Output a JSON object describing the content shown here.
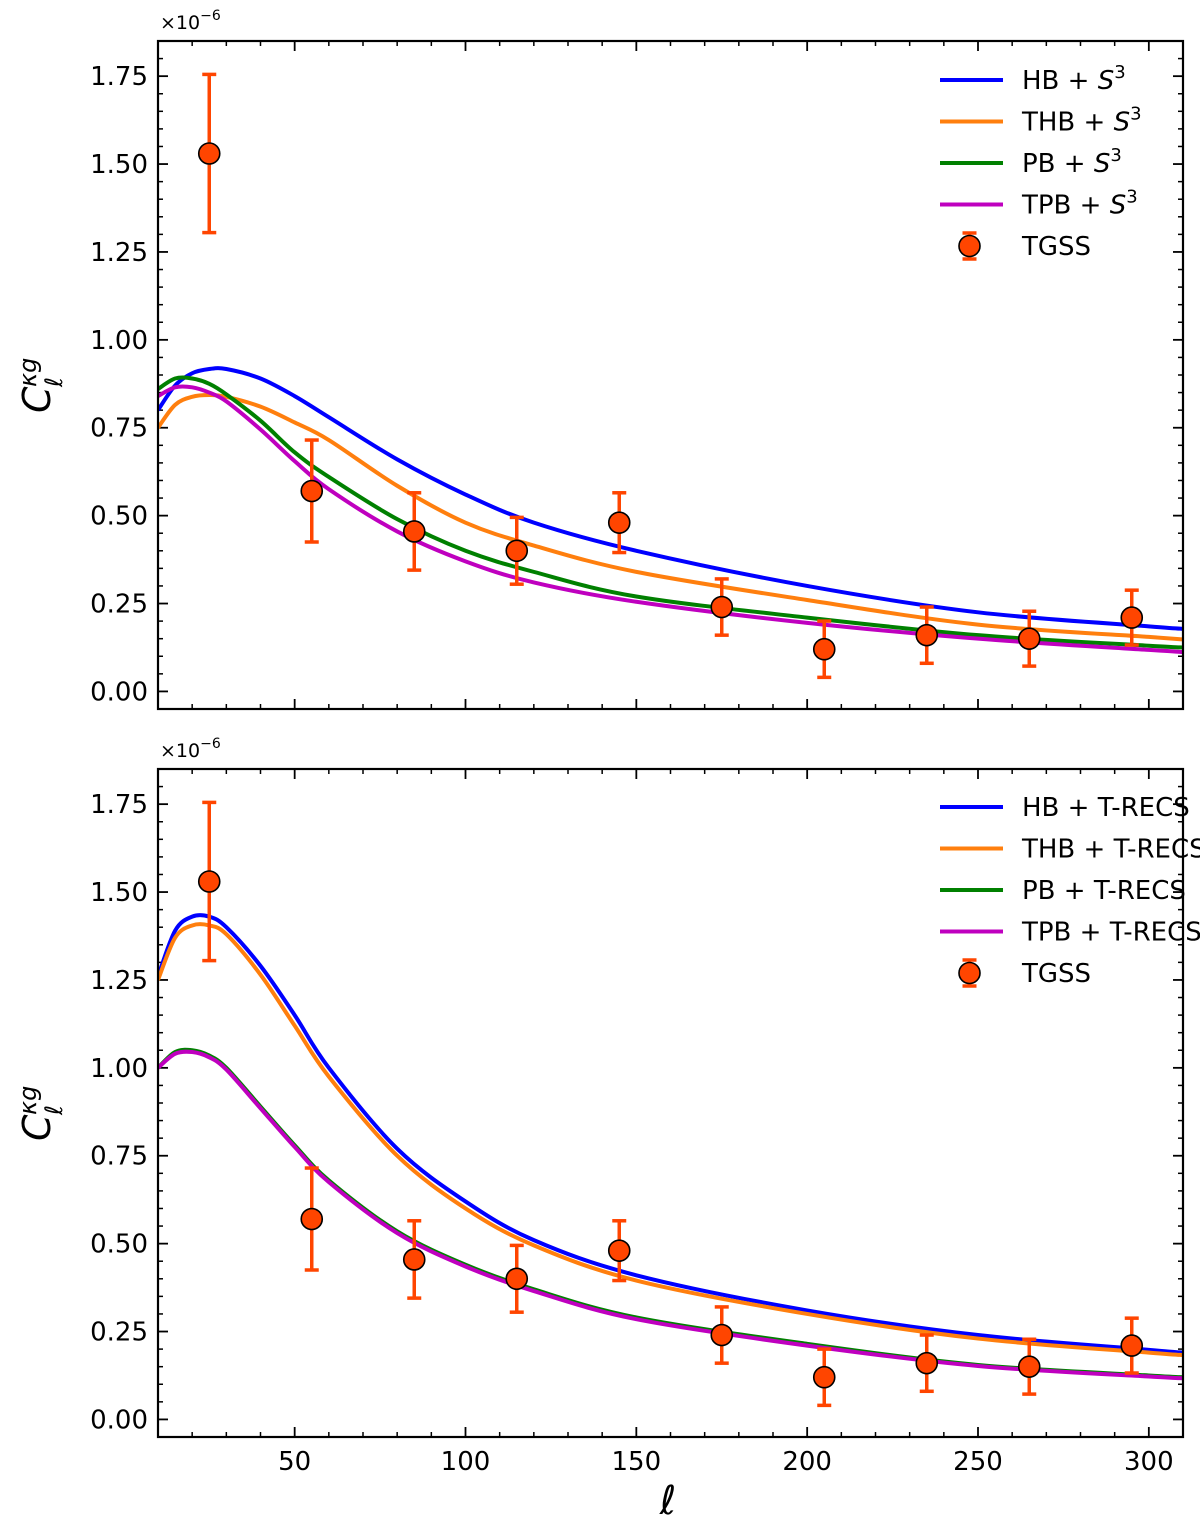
{
  "figure": {
    "xlabel": "ℓ",
    "x_tick_labels": [
      "50",
      "100",
      "150",
      "200",
      "250",
      "300"
    ],
    "x_ticks": [
      50,
      100,
      150,
      200,
      250,
      300
    ],
    "y_tick_labels": [
      "0.00",
      "0.25",
      "0.50",
      "0.75",
      "1.00",
      "1.25",
      "1.50",
      "1.75"
    ],
    "y_ticks": [
      0,
      0.25,
      0.5,
      0.75,
      1.0,
      1.25,
      1.5,
      1.75
    ],
    "ylabel_main": "C",
    "ylabel_sup": "κg",
    "ylabel_sub": "ℓ",
    "offset_text": "×10",
    "offset_exp": "−6"
  },
  "chart_data": [
    {
      "type": "line",
      "panel": "top",
      "title": "",
      "xlabel": "",
      "ylabel": "C_ℓ^κg",
      "xlim": [
        10,
        310
      ],
      "ylim": [
        -0.05,
        1.85
      ],
      "legend_position": "top-right",
      "series": [
        {
          "name": "HB + ",
          "name_sup": "3",
          "name_math": "S",
          "color": "#0000ff",
          "x": [
            10,
            15,
            20,
            25,
            30,
            40,
            50,
            60,
            80,
            100,
            120,
            150,
            200,
            250,
            300,
            310
          ],
          "y": [
            0.8,
            0.87,
            0.905,
            0.917,
            0.917,
            0.89,
            0.84,
            0.78,
            0.66,
            0.56,
            0.48,
            0.4,
            0.3,
            0.225,
            0.185,
            0.178
          ]
        },
        {
          "name": "THB + ",
          "name_sup": "3",
          "name_math": "S",
          "color": "#ff7f0e",
          "x": [
            10,
            15,
            20,
            25,
            30,
            40,
            50,
            60,
            80,
            100,
            120,
            150,
            200,
            250,
            300,
            310
          ],
          "y": [
            0.75,
            0.815,
            0.838,
            0.843,
            0.838,
            0.81,
            0.765,
            0.715,
            0.585,
            0.48,
            0.415,
            0.34,
            0.26,
            0.19,
            0.155,
            0.148
          ]
        },
        {
          "name": "PB + ",
          "name_sup": "3",
          "name_math": "S",
          "color": "#008000",
          "x": [
            10,
            15,
            20,
            25,
            30,
            40,
            50,
            60,
            80,
            100,
            120,
            150,
            200,
            250,
            300,
            310
          ],
          "y": [
            0.86,
            0.89,
            0.89,
            0.875,
            0.845,
            0.77,
            0.68,
            0.61,
            0.49,
            0.4,
            0.34,
            0.27,
            0.21,
            0.16,
            0.13,
            0.125
          ]
        },
        {
          "name": "TPB + ",
          "name_sup": "3",
          "name_math": "S",
          "color": "#bf00bf",
          "x": [
            10,
            15,
            20,
            25,
            30,
            40,
            50,
            60,
            80,
            100,
            120,
            150,
            200,
            250,
            300,
            310
          ],
          "y": [
            0.84,
            0.865,
            0.865,
            0.85,
            0.825,
            0.745,
            0.655,
            0.575,
            0.455,
            0.37,
            0.31,
            0.255,
            0.195,
            0.15,
            0.118,
            0.112
          ]
        }
      ],
      "errorbar_series": {
        "name": "TGSS",
        "color": "#ff4500",
        "x": [
          25,
          55,
          85,
          115,
          145,
          175,
          205,
          235,
          265,
          295
        ],
        "y": [
          1.53,
          0.57,
          0.455,
          0.4,
          0.48,
          0.24,
          0.12,
          0.16,
          0.15,
          0.21
        ],
        "yerr": [
          0.225,
          0.145,
          0.11,
          0.095,
          0.085,
          0.08,
          0.08,
          0.08,
          0.078,
          0.078
        ]
      }
    },
    {
      "type": "line",
      "panel": "bottom",
      "title": "",
      "xlabel": "ℓ",
      "ylabel": "C_ℓ^κg",
      "xlim": [
        10,
        310
      ],
      "ylim": [
        -0.05,
        1.85
      ],
      "legend_position": "top-right",
      "series": [
        {
          "name": "HB + T-RECS",
          "color": "#0000ff",
          "x": [
            10,
            15,
            20,
            25,
            30,
            40,
            50,
            60,
            80,
            100,
            120,
            150,
            200,
            250,
            300,
            310
          ],
          "y": [
            1.26,
            1.39,
            1.43,
            1.43,
            1.4,
            1.29,
            1.15,
            1.0,
            0.77,
            0.62,
            0.51,
            0.41,
            0.31,
            0.24,
            0.198,
            0.19
          ]
        },
        {
          "name": "THB + T-RECS",
          "color": "#ff7f0e",
          "x": [
            10,
            15,
            20,
            25,
            30,
            40,
            50,
            60,
            80,
            100,
            120,
            150,
            200,
            250,
            300,
            310
          ],
          "y": [
            1.25,
            1.37,
            1.405,
            1.405,
            1.38,
            1.265,
            1.12,
            0.975,
            0.75,
            0.6,
            0.495,
            0.395,
            0.3,
            0.23,
            0.19,
            0.183
          ]
        },
        {
          "name": "PB + T-RECS",
          "color": "#008000",
          "x": [
            10,
            15,
            20,
            25,
            30,
            40,
            50,
            60,
            80,
            100,
            120,
            150,
            200,
            250,
            300,
            310
          ],
          "y": [
            1.0,
            1.045,
            1.05,
            1.035,
            1.0,
            0.89,
            0.78,
            0.68,
            0.535,
            0.44,
            0.37,
            0.29,
            0.215,
            0.155,
            0.125,
            0.12
          ]
        },
        {
          "name": "TPB + T-RECS",
          "color": "#bf00bf",
          "x": [
            10,
            15,
            20,
            25,
            30,
            40,
            50,
            60,
            80,
            100,
            120,
            150,
            200,
            250,
            300,
            310
          ],
          "y": [
            1.0,
            1.04,
            1.045,
            1.03,
            0.995,
            0.885,
            0.775,
            0.675,
            0.53,
            0.435,
            0.365,
            0.285,
            0.21,
            0.152,
            0.122,
            0.117
          ]
        }
      ],
      "errorbar_series": {
        "name": "TGSS",
        "color": "#ff4500",
        "x": [
          25,
          55,
          85,
          115,
          145,
          175,
          205,
          235,
          265,
          295
        ],
        "y": [
          1.53,
          0.57,
          0.455,
          0.4,
          0.48,
          0.24,
          0.12,
          0.16,
          0.15,
          0.21
        ],
        "yerr": [
          0.225,
          0.145,
          0.11,
          0.095,
          0.085,
          0.08,
          0.08,
          0.08,
          0.078,
          0.078
        ]
      }
    }
  ]
}
